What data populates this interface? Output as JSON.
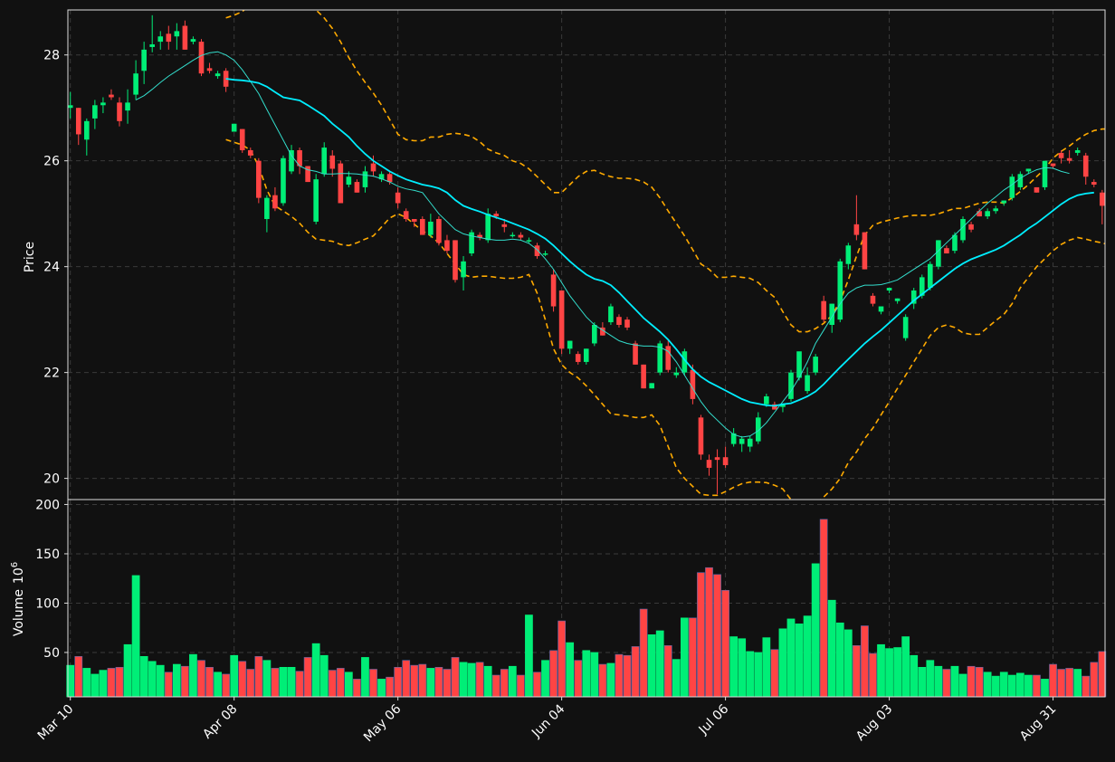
{
  "colors": {
    "background": "#111111",
    "up": "#00ee77",
    "down": "#ff4444",
    "ma_fast": "#33ddcc",
    "ma_slow": "#00eeff",
    "bands": "#ffaa00",
    "grid": "#3a3a3a",
    "axis": "#dddddd",
    "text": "#ffffff"
  },
  "chart_data": {
    "type": "candlestick",
    "grid": true,
    "price_panel": {
      "ylabel": "Price",
      "ylim": [
        19.6,
        28.85
      ],
      "yticks": [
        20,
        22,
        24,
        26,
        28
      ]
    },
    "volume_panel": {
      "ylabel": "Volume",
      "ylabel_exponent": "10",
      "ylabel_exponent_power": "6",
      "ylim": [
        5,
        205
      ],
      "yticks": [
        50,
        100,
        150,
        200
      ]
    },
    "x_ticks": [
      {
        "label": "Mar 10",
        "index": 0
      },
      {
        "label": "Apr 08",
        "index": 20
      },
      {
        "label": "May 06",
        "index": 40
      },
      {
        "label": "Jun 04",
        "index": 60
      },
      {
        "label": "Jul 06",
        "index": 80
      },
      {
        "label": "Aug 03",
        "index": 100
      },
      {
        "label": "Aug 31",
        "index": 120
      }
    ],
    "n_bars": 127,
    "ohlc": [
      [
        27.0,
        27.3,
        26.8,
        27.05
      ],
      [
        27.0,
        27.0,
        26.3,
        26.5
      ],
      [
        26.4,
        26.8,
        26.1,
        26.75
      ],
      [
        26.8,
        27.15,
        26.6,
        27.05
      ],
      [
        27.05,
        27.2,
        26.9,
        27.1
      ],
      [
        27.25,
        27.35,
        27.15,
        27.2
      ],
      [
        27.1,
        27.2,
        26.65,
        26.75
      ],
      [
        26.95,
        27.35,
        26.7,
        27.1
      ],
      [
        27.25,
        27.9,
        27.15,
        27.65
      ],
      [
        27.7,
        28.25,
        27.45,
        28.1
      ],
      [
        28.15,
        28.75,
        28.05,
        28.2
      ],
      [
        28.25,
        28.45,
        28.1,
        28.35
      ],
      [
        28.4,
        28.55,
        28.1,
        28.25
      ],
      [
        28.35,
        28.6,
        28.1,
        28.45
      ],
      [
        28.55,
        28.65,
        28.1,
        28.1
      ],
      [
        28.25,
        28.35,
        28.2,
        28.3
      ],
      [
        28.25,
        28.3,
        27.6,
        27.65
      ],
      [
        27.75,
        27.85,
        27.65,
        27.7
      ],
      [
        27.6,
        27.7,
        27.55,
        27.65
      ],
      [
        27.7,
        27.75,
        27.3,
        27.4
      ],
      [
        26.55,
        26.7,
        26.55,
        26.7
      ],
      [
        26.6,
        26.6,
        26.15,
        26.2
      ],
      [
        26.2,
        26.25,
        26.05,
        26.1
      ],
      [
        26.0,
        26.05,
        25.2,
        25.3
      ],
      [
        24.9,
        25.35,
        24.65,
        25.3
      ],
      [
        25.35,
        25.5,
        25.05,
        25.1
      ],
      [
        25.2,
        26.1,
        25.15,
        26.05
      ],
      [
        25.8,
        26.3,
        25.75,
        26.2
      ],
      [
        26.2,
        26.25,
        25.75,
        25.9
      ],
      [
        25.9,
        25.9,
        25.6,
        25.6
      ],
      [
        24.85,
        25.75,
        24.8,
        25.65
      ],
      [
        25.75,
        26.35,
        25.7,
        26.25
      ],
      [
        26.1,
        26.2,
        25.7,
        25.85
      ],
      [
        25.95,
        26.0,
        25.2,
        25.2
      ],
      [
        25.55,
        25.8,
        25.5,
        25.7
      ],
      [
        25.6,
        25.65,
        25.4,
        25.4
      ],
      [
        25.5,
        25.9,
        25.4,
        25.8
      ],
      [
        25.95,
        26.1,
        25.7,
        25.8
      ],
      [
        25.65,
        25.8,
        25.6,
        25.75
      ],
      [
        25.75,
        25.8,
        25.55,
        25.6
      ],
      [
        25.4,
        25.5,
        25.1,
        25.2
      ],
      [
        25.05,
        25.1,
        24.85,
        24.9
      ],
      [
        24.9,
        24.9,
        24.75,
        24.85
      ],
      [
        24.9,
        24.95,
        24.6,
        24.6
      ],
      [
        24.6,
        25.0,
        24.55,
        24.85
      ],
      [
        24.9,
        24.95,
        24.4,
        24.45
      ],
      [
        24.5,
        24.6,
        24.25,
        24.3
      ],
      [
        24.5,
        24.5,
        23.7,
        23.75
      ],
      [
        23.8,
        24.2,
        23.55,
        24.1
      ],
      [
        24.25,
        24.7,
        24.2,
        24.65
      ],
      [
        24.6,
        24.65,
        24.5,
        24.55
      ],
      [
        24.5,
        25.1,
        24.45,
        25.0
      ],
      [
        25.0,
        25.05,
        24.9,
        24.95
      ],
      [
        24.8,
        24.9,
        24.65,
        24.75
      ],
      [
        24.6,
        24.65,
        24.55,
        24.6
      ],
      [
        24.6,
        24.65,
        24.5,
        24.55
      ],
      [
        24.5,
        24.55,
        24.45,
        24.5
      ],
      [
        24.4,
        24.45,
        24.15,
        24.2
      ],
      [
        24.25,
        24.3,
        24.2,
        24.25
      ],
      [
        23.85,
        23.95,
        23.15,
        23.25
      ],
      [
        23.55,
        23.55,
        22.35,
        22.45
      ],
      [
        22.45,
        22.6,
        22.35,
        22.6
      ],
      [
        22.35,
        22.4,
        22.15,
        22.2
      ],
      [
        22.2,
        22.45,
        22.15,
        22.45
      ],
      [
        22.55,
        22.95,
        22.5,
        22.9
      ],
      [
        22.85,
        22.95,
        22.7,
        22.7
      ],
      [
        22.95,
        23.3,
        22.9,
        23.25
      ],
      [
        23.05,
        23.1,
        22.85,
        22.9
      ],
      [
        23.0,
        23.05,
        22.8,
        22.85
      ],
      [
        22.55,
        22.6,
        22.15,
        22.15
      ],
      [
        22.15,
        22.15,
        21.7,
        21.7
      ],
      [
        21.7,
        21.8,
        21.7,
        21.8
      ],
      [
        22.0,
        22.6,
        21.95,
        22.55
      ],
      [
        22.5,
        22.6,
        22.0,
        22.05
      ],
      [
        21.95,
        22.1,
        21.9,
        22.0
      ],
      [
        22.0,
        22.45,
        21.95,
        22.4
      ],
      [
        22.05,
        22.15,
        21.4,
        21.5
      ],
      [
        21.15,
        21.2,
        20.35,
        20.45
      ],
      [
        20.35,
        20.45,
        20.05,
        20.2
      ],
      [
        20.4,
        20.55,
        19.7,
        20.35
      ],
      [
        20.4,
        20.6,
        20.2,
        20.25
      ],
      [
        20.65,
        20.95,
        20.6,
        20.85
      ],
      [
        20.65,
        20.8,
        20.5,
        20.75
      ],
      [
        20.6,
        20.8,
        20.5,
        20.75
      ],
      [
        20.7,
        21.25,
        20.65,
        21.15
      ],
      [
        21.4,
        21.6,
        21.35,
        21.55
      ],
      [
        21.4,
        21.45,
        21.3,
        21.3
      ],
      [
        21.35,
        21.4,
        21.25,
        21.4
      ],
      [
        21.5,
        22.05,
        21.45,
        22.0
      ],
      [
        21.9,
        22.35,
        21.85,
        22.4
      ],
      [
        21.65,
        22.1,
        21.6,
        21.95
      ],
      [
        22.0,
        22.35,
        21.95,
        22.3
      ],
      [
        23.35,
        23.45,
        22.95,
        23.0
      ],
      [
        22.9,
        23.3,
        22.75,
        23.3
      ],
      [
        23.0,
        24.15,
        22.95,
        24.1
      ],
      [
        24.05,
        24.45,
        23.95,
        24.4
      ],
      [
        24.8,
        25.35,
        24.5,
        24.6
      ],
      [
        24.65,
        24.65,
        23.95,
        23.95
      ],
      [
        23.45,
        23.5,
        23.25,
        23.3
      ],
      [
        23.15,
        23.2,
        23.1,
        23.25
      ],
      [
        23.55,
        23.6,
        23.5,
        23.6
      ],
      [
        23.35,
        23.4,
        23.3,
        23.4
      ],
      [
        22.65,
        23.1,
        22.6,
        23.05
      ],
      [
        23.3,
        23.6,
        23.2,
        23.55
      ],
      [
        23.45,
        23.85,
        23.4,
        23.8
      ],
      [
        23.6,
        24.1,
        23.55,
        24.05
      ],
      [
        24.0,
        24.5,
        23.95,
        24.5
      ],
      [
        24.35,
        24.4,
        24.25,
        24.25
      ],
      [
        24.3,
        24.65,
        24.25,
        24.6
      ],
      [
        24.5,
        24.95,
        24.45,
        24.9
      ],
      [
        24.8,
        24.85,
        24.65,
        24.7
      ],
      [
        25.05,
        25.1,
        24.95,
        24.95
      ],
      [
        24.95,
        25.1,
        24.9,
        25.05
      ],
      [
        25.05,
        25.15,
        25.0,
        25.1
      ],
      [
        25.2,
        25.25,
        25.15,
        25.25
      ],
      [
        25.3,
        25.75,
        25.25,
        25.7
      ],
      [
        25.5,
        25.8,
        25.45,
        25.75
      ],
      [
        25.8,
        25.85,
        25.75,
        25.85
      ],
      [
        25.5,
        25.5,
        25.4,
        25.4
      ],
      [
        25.5,
        26.0,
        25.45,
        26.0
      ],
      [
        25.95,
        25.95,
        25.85,
        25.9
      ],
      [
        26.15,
        26.2,
        25.95,
        26.05
      ],
      [
        26.05,
        26.2,
        25.95,
        26.0
      ],
      [
        26.15,
        26.25,
        26.1,
        26.2
      ],
      [
        26.1,
        26.15,
        25.55,
        25.7
      ],
      [
        25.6,
        25.65,
        25.5,
        25.55
      ],
      [
        25.4,
        25.45,
        24.8,
        25.15
      ]
    ],
    "volume_millions": [
      37,
      46,
      34,
      28,
      32,
      34,
      35,
      58,
      128,
      46,
      41,
      37,
      30,
      38,
      36,
      48,
      42,
      35,
      30,
      28,
      47,
      41,
      33,
      46,
      42,
      34,
      35,
      35,
      31,
      45,
      59,
      47,
      32,
      34,
      30,
      23,
      45,
      33,
      23,
      25,
      35,
      42,
      37,
      38,
      34,
      35,
      33,
      45,
      40,
      39,
      40,
      36,
      27,
      33,
      36,
      27,
      88,
      30,
      42,
      52,
      82,
      60,
      42,
      52,
      50,
      38,
      39,
      48,
      47,
      56,
      94,
      68,
      72,
      57,
      43,
      85,
      85,
      131,
      136,
      129,
      113,
      66,
      64,
      51,
      50,
      65,
      53,
      74,
      84,
      79,
      87,
      140,
      185,
      103,
      80,
      73,
      57,
      77,
      49,
      58,
      54,
      55,
      66,
      47,
      35,
      42,
      36,
      33,
      36,
      28,
      36,
      35,
      30,
      26,
      30,
      27,
      29,
      27,
      27,
      23,
      38,
      33,
      34,
      33,
      26,
      40,
      51
    ],
    "ma_fast": {
      "start_index": 8,
      "values": [
        27.15,
        27.23,
        27.35,
        27.48,
        27.6,
        27.7,
        27.8,
        27.9,
        27.99,
        28.04,
        28.06,
        28.0,
        27.9,
        27.72,
        27.5,
        27.27,
        26.97,
        26.68,
        26.39,
        26.1,
        25.9,
        25.83,
        25.8,
        25.75,
        25.75,
        25.76,
        25.76,
        25.75,
        25.73,
        25.71,
        25.66,
        25.6,
        25.52,
        25.47,
        25.44,
        25.4,
        25.2,
        25.0,
        24.85,
        24.7,
        24.62,
        24.58,
        24.55,
        24.52,
        24.5,
        24.5,
        24.52,
        24.5,
        24.44,
        24.32,
        24.15,
        23.95,
        23.7,
        23.45,
        23.25,
        23.05,
        22.9,
        22.8,
        22.7,
        22.6,
        22.55,
        22.52,
        22.5,
        22.5,
        22.48,
        22.4,
        22.2,
        21.95,
        21.7,
        21.45,
        21.25,
        21.1,
        20.95,
        20.83,
        20.78,
        20.8,
        20.9,
        21.05,
        21.25,
        21.45,
        21.65,
        21.9,
        22.2,
        22.55,
        22.8,
        23.05,
        23.3,
        23.5,
        23.6,
        23.65,
        23.65,
        23.66,
        23.7,
        23.75,
        23.85,
        23.95,
        24.05,
        24.15,
        24.3,
        24.45,
        24.6,
        24.75,
        24.9,
        25.05,
        25.2,
        25.32,
        25.45,
        25.55,
        25.67,
        25.76,
        25.83,
        25.87,
        25.86,
        25.8,
        25.76
      ]
    },
    "ma_slow": {
      "start_index": 19,
      "values": [
        27.55,
        27.53,
        27.52,
        27.5,
        27.47,
        27.4,
        27.3,
        27.2,
        27.17,
        27.14,
        27.05,
        26.95,
        26.85,
        26.7,
        26.58,
        26.45,
        26.28,
        26.13,
        26.0,
        25.9,
        25.8,
        25.72,
        25.65,
        25.6,
        25.55,
        25.52,
        25.48,
        25.4,
        25.26,
        25.15,
        25.09,
        25.04,
        24.98,
        24.93,
        24.88,
        24.82,
        24.76,
        24.7,
        24.62,
        24.53,
        24.4,
        24.25,
        24.1,
        23.97,
        23.85,
        23.77,
        23.73,
        23.65,
        23.51,
        23.35,
        23.19,
        23.03,
        22.9,
        22.77,
        22.62,
        22.44,
        22.24,
        22.06,
        21.92,
        21.82,
        21.74,
        21.66,
        21.58,
        21.5,
        21.44,
        21.41,
        21.38,
        21.37,
        21.4,
        21.42,
        21.48,
        21.55,
        21.64,
        21.78,
        21.94,
        22.1,
        22.25,
        22.4,
        22.55,
        22.68,
        22.8,
        22.94,
        23.08,
        23.22,
        23.36,
        23.48,
        23.6,
        23.72,
        23.84,
        23.96,
        24.06,
        24.14,
        24.2,
        24.26,
        24.32,
        24.4,
        24.5,
        24.6,
        24.72,
        24.82,
        24.94,
        25.06,
        25.18,
        25.28,
        25.35,
        25.38,
        25.4
      ]
    },
    "band_upper": {
      "start_index": 19,
      "values": [
        28.7,
        28.75,
        28.82,
        28.95,
        29.0,
        29.05,
        29.1,
        29.1,
        29.05,
        29.0,
        28.95,
        28.85,
        28.7,
        28.5,
        28.25,
        27.95,
        27.7,
        27.48,
        27.28,
        27.05,
        26.78,
        26.5,
        26.4,
        26.38,
        26.38,
        26.45,
        26.45,
        26.5,
        26.52,
        26.5,
        26.46,
        26.36,
        26.22,
        26.15,
        26.1,
        26.0,
        25.95,
        25.85,
        25.7,
        25.55,
        25.4,
        25.4,
        25.55,
        25.7,
        25.8,
        25.82,
        25.75,
        25.7,
        25.67,
        25.67,
        25.65,
        25.6,
        25.5,
        25.3,
        25.05,
        24.82,
        24.58,
        24.32,
        24.05,
        23.95,
        23.8,
        23.8,
        23.82,
        23.8,
        23.78,
        23.7,
        23.55,
        23.42,
        23.15,
        22.9,
        22.77,
        22.77,
        22.83,
        22.93,
        23.08,
        23.35,
        23.75,
        24.2,
        24.6,
        24.78,
        24.84,
        24.88,
        24.92,
        24.95,
        24.97,
        24.97,
        24.97,
        25.0,
        25.05,
        25.1,
        25.1,
        25.15,
        25.2,
        25.22,
        25.22,
        25.2,
        25.3,
        25.42,
        25.55,
        25.7,
        25.85,
        26.05,
        26.18,
        26.28,
        26.4,
        26.5,
        26.57,
        26.6,
        26.6,
        26.62,
        26.58,
        26.55,
        26.5
      ]
    },
    "band_lower": {
      "start_index": 19,
      "values": [
        26.4,
        26.35,
        26.3,
        26.2,
        25.9,
        25.45,
        25.15,
        25.05,
        24.95,
        24.82,
        24.65,
        24.52,
        24.5,
        24.48,
        24.42,
        24.4,
        24.45,
        24.52,
        24.58,
        24.75,
        24.92,
        25.0,
        24.93,
        24.8,
        24.68,
        24.58,
        24.45,
        24.25,
        24.05,
        23.85,
        23.8,
        23.82,
        23.82,
        23.8,
        23.78,
        23.78,
        23.8,
        23.85,
        23.5,
        23.0,
        22.45,
        22.15,
        22.0,
        21.9,
        21.75,
        21.58,
        21.4,
        21.22,
        21.2,
        21.18,
        21.15,
        21.15,
        21.2,
        21.0,
        20.6,
        20.2,
        20.0,
        19.85,
        19.7,
        19.68,
        19.68,
        19.75,
        19.83,
        19.9,
        19.93,
        19.93,
        19.92,
        19.87,
        19.8,
        19.6,
        19.2,
        19.35,
        19.5,
        19.65,
        19.8,
        20.0,
        20.3,
        20.5,
        20.75,
        20.95,
        21.2,
        21.45,
        21.7,
        21.95,
        22.2,
        22.45,
        22.7,
        22.85,
        22.9,
        22.85,
        22.75,
        22.72,
        22.72,
        22.85,
        22.98,
        23.1,
        23.3,
        23.6,
        23.8,
        24.0,
        24.15,
        24.3,
        24.42,
        24.5,
        24.55,
        24.52,
        24.48,
        24.45,
        24.4,
        24.35,
        24.3,
        24.25,
        24.2
      ]
    }
  }
}
